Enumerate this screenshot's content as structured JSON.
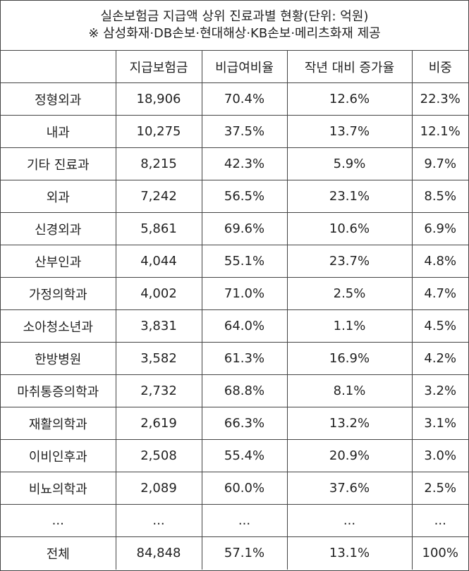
{
  "title": {
    "line1": "실손보험금 지급액 상위 진료과별 현황(단위: 억원)",
    "line2": "※ 삼성화재·DB손보·현대해상·KB손보·메리츠화재 제공"
  },
  "table": {
    "header": [
      "지급보험금",
      "비급여비율",
      "작년 대비 증가율",
      "비중"
    ],
    "rows": [
      [
        "정형외과",
        "18,906",
        "70.4%",
        "12.6%",
        "22.3%"
      ],
      [
        "내과",
        "10,275",
        "37.5%",
        "13.7%",
        "12.1%"
      ],
      [
        "기타 진료과",
        "8,215",
        "42.3%",
        "5.9%",
        "9.7%"
      ],
      [
        "외과",
        "7,242",
        "56.5%",
        "23.1%",
        "8.5%"
      ],
      [
        "신경외과",
        "5,861",
        "69.6%",
        "10.6%",
        "6.9%"
      ],
      [
        "산부인과",
        "4,044",
        "55.1%",
        "23.7%",
        "4.8%"
      ],
      [
        "가정의학과",
        "4,002",
        "71.0%",
        "2.5%",
        "4.7%"
      ],
      [
        "소아청소년과",
        "3,831",
        "64.0%",
        "1.1%",
        "4.5%"
      ],
      [
        "한방병원",
        "3,582",
        "61.3%",
        "16.9%",
        "4.2%"
      ],
      [
        "마취통증의학과",
        "2,732",
        "68.8%",
        "8.1%",
        "3.2%"
      ],
      [
        "재활의학과",
        "2,619",
        "66.3%",
        "13.2%",
        "3.1%"
      ],
      [
        "이비인후과",
        "2,508",
        "55.4%",
        "20.9%",
        "3.0%"
      ],
      [
        "비뇨의학과",
        "2,089",
        "60.0%",
        "37.6%",
        "2.5%"
      ],
      [
        "...",
        "...",
        "...",
        "...",
        "..."
      ],
      [
        "전체",
        "84,848",
        "57.1%",
        "13.1%",
        "100%"
      ]
    ]
  }
}
